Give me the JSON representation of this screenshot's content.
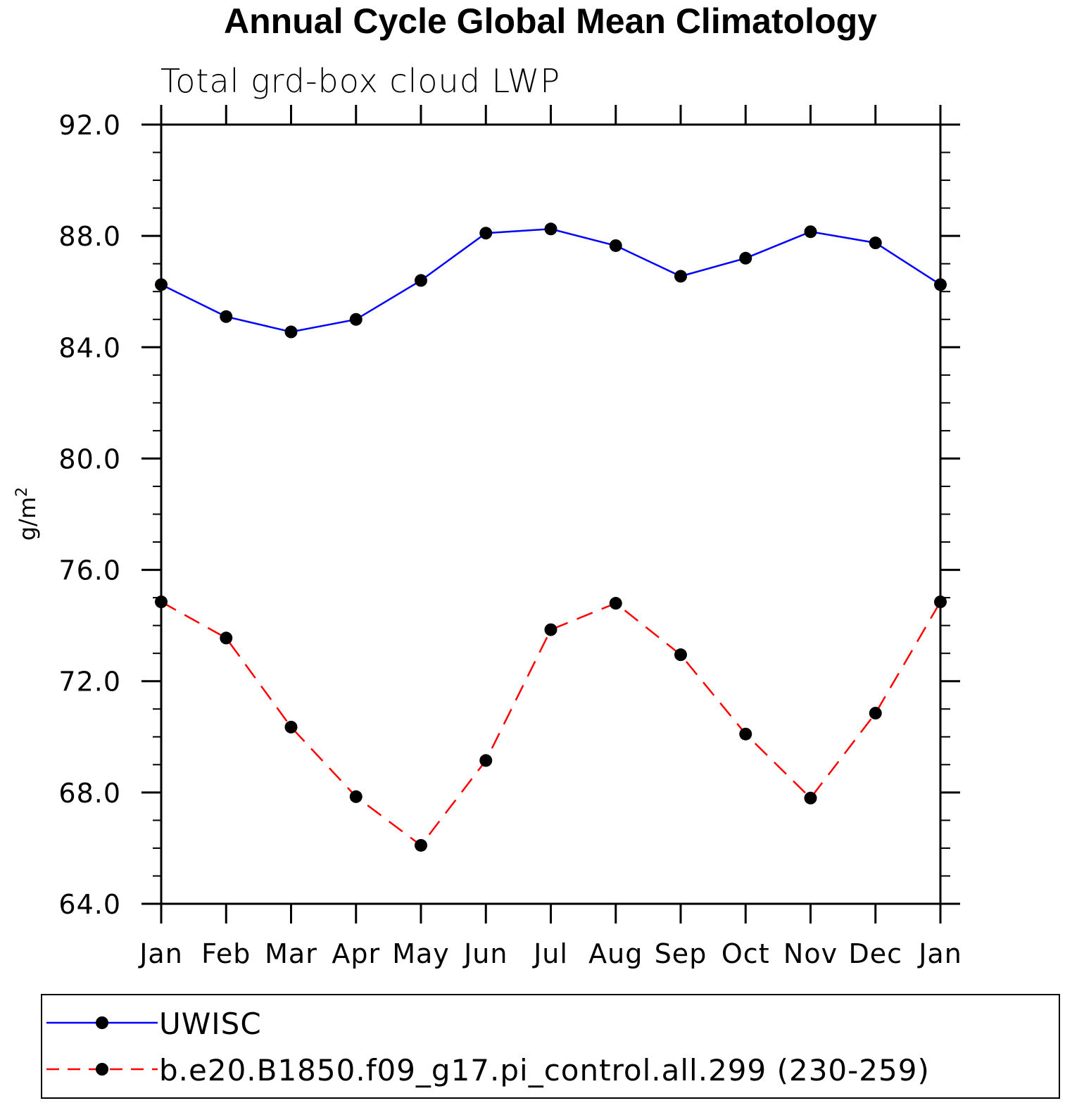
{
  "chart_data": {
    "type": "line",
    "title": "Annual Cycle Global Mean Climatology",
    "subtitle": "Total grd-box cloud LWP",
    "ylabel": "g/m",
    "ylabel_sup": "2",
    "xlabel": "",
    "categories": [
      "Jan",
      "Feb",
      "Mar",
      "Apr",
      "May",
      "Jun",
      "Jul",
      "Aug",
      "Sep",
      "Oct",
      "Nov",
      "Dec",
      "Jan"
    ],
    "ylim": [
      64.0,
      92.0
    ],
    "y_major_ticks": [
      "64.0",
      "68.0",
      "72.0",
      "76.0",
      "80.0",
      "84.0",
      "88.0",
      "92.0"
    ],
    "y_minor_step": 1.0,
    "grid": false,
    "legend_position": "bottom",
    "series": [
      {
        "name": "UWISC",
        "color": "#0000ff",
        "line_style": "solid",
        "marker": "filled-circle",
        "values": [
          86.25,
          85.1,
          84.55,
          85.0,
          86.4,
          88.1,
          88.25,
          87.65,
          86.55,
          87.2,
          88.15,
          87.75,
          86.25
        ]
      },
      {
        "name": "b.e20.B1850.f09_g17.pi_control.all.299 (230-259)",
        "color": "#ff0000",
        "line_style": "dashed",
        "marker": "filled-circle",
        "values": [
          74.85,
          73.55,
          70.35,
          67.85,
          66.1,
          69.15,
          73.85,
          74.8,
          72.95,
          70.1,
          67.8,
          70.85,
          74.85
        ]
      }
    ]
  }
}
